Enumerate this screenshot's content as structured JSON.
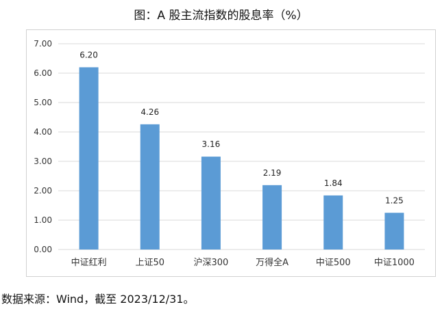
{
  "chart_data": {
    "type": "bar",
    "title": "图：A 股主流指数的股息率（%）",
    "categories": [
      "中证红利",
      "上证50",
      "沪深300",
      "万得全A",
      "中证500",
      "中证1000"
    ],
    "values": [
      6.2,
      4.26,
      3.16,
      2.19,
      1.84,
      1.25
    ],
    "data_labels": [
      "6.20",
      "4.26",
      "3.16",
      "2.19",
      "1.84",
      "1.25"
    ],
    "y_ticks": [
      "0.00",
      "1.00",
      "2.00",
      "3.00",
      "4.00",
      "5.00",
      "6.00",
      "7.00"
    ],
    "ylim": [
      0,
      7
    ],
    "grid": true,
    "bar_color": "#5b9bd5",
    "grid_color": "#d9d9d9"
  },
  "source_note": "数据来源：Wind，截至 2023/12/31。"
}
